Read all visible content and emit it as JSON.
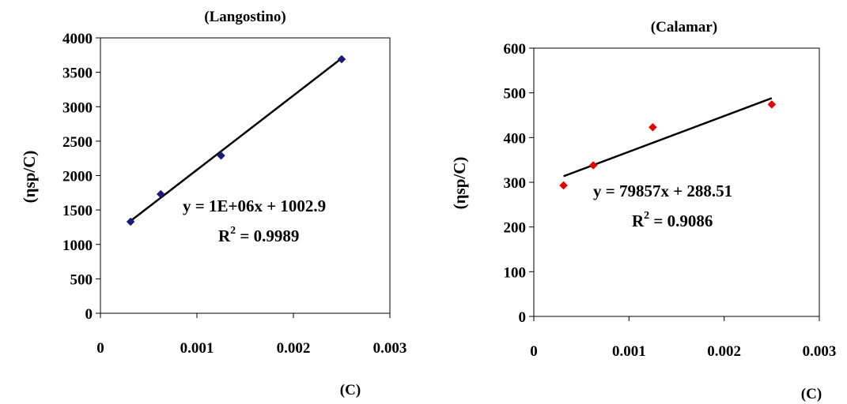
{
  "chart_data": [
    {
      "type": "scatter",
      "title": "(Langostino)",
      "xlabel": "(C)",
      "ylabel": "(ηsp/C)",
      "xlim": [
        0,
        0.003
      ],
      "ylim": [
        0,
        4000
      ],
      "x_ticks": [
        "0",
        "0.001",
        "0.002",
        "0.003"
      ],
      "y_ticks": [
        "0",
        "500",
        "1000",
        "1500",
        "2000",
        "2500",
        "3000",
        "3500",
        "4000"
      ],
      "grid": false,
      "marker_color": "#1a1a7a",
      "series": [
        {
          "x": [
            0.0003125,
            0.000625,
            0.00125,
            0.0025
          ],
          "y": [
            1330,
            1730,
            2290,
            3690
          ]
        }
      ],
      "trendline": {
        "slope": 1080000,
        "intercept": 1002.9
      },
      "equation": "y = 1E+06x + 1002.9",
      "r2_label": "R",
      "r2_sup": "2",
      "r2_value": " = 0.9989"
    },
    {
      "type": "scatter",
      "title": "(Calamar)",
      "xlabel": "(C)",
      "ylabel": "(ηsp/C)",
      "xlim": [
        0,
        0.003
      ],
      "ylim": [
        0,
        600
      ],
      "x_ticks": [
        "0",
        "0.001",
        "0.002",
        "0.003"
      ],
      "y_ticks": [
        "0",
        "100",
        "200",
        "300",
        "400",
        "500",
        "600"
      ],
      "grid": false,
      "marker_color": "#e60000",
      "series": [
        {
          "x": [
            0.0003125,
            0.000625,
            0.00125,
            0.0025
          ],
          "y": [
            293,
            338,
            423,
            474
          ]
        }
      ],
      "trendline": {
        "slope": 79857,
        "intercept": 288.51
      },
      "equation": "y = 79857x + 288.51",
      "r2_label": "R",
      "r2_sup": "2",
      "r2_value": " = 0.9086"
    }
  ]
}
